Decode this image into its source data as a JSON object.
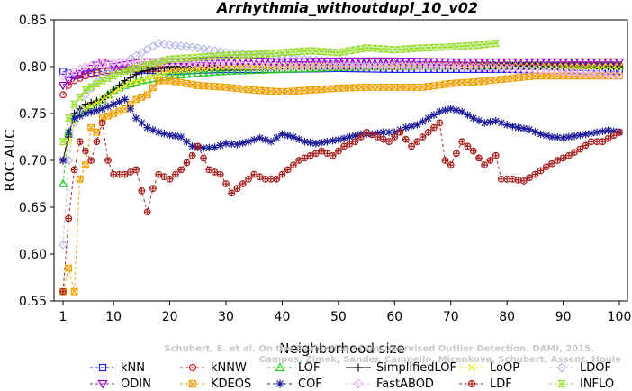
{
  "chart_data": {
    "type": "line",
    "title": "Arrhythmia_withoutdupl_10_v02",
    "xlabel": "Neighborhood size",
    "ylabel": "ROC AUC",
    "xlim": [
      0,
      101
    ],
    "ylim": [
      0.55,
      0.85
    ],
    "xticks": [
      1,
      10,
      20,
      30,
      40,
      50,
      60,
      70,
      80,
      90,
      100
    ],
    "yticks": [
      0.55,
      0.6,
      0.65,
      0.7,
      0.75,
      0.8,
      0.85
    ],
    "ytick_labels": [
      "0.55",
      "0.60",
      "0.65",
      "0.70",
      "0.75",
      "0.80",
      "0.85"
    ],
    "legend_position": "bottom",
    "series": [
      {
        "name": "kNN",
        "color": "#1a1aff",
        "marker": "square",
        "dash": "3,3",
        "points": [
          [
            1,
            0.795
          ],
          [
            2,
            0.793
          ],
          [
            3,
            0.79
          ],
          [
            5,
            0.792
          ],
          [
            8,
            0.795
          ],
          [
            12,
            0.797
          ],
          [
            20,
            0.795
          ],
          [
            30,
            0.797
          ],
          [
            40,
            0.797
          ],
          [
            50,
            0.798
          ],
          [
            60,
            0.797
          ],
          [
            70,
            0.797
          ],
          [
            80,
            0.797
          ],
          [
            90,
            0.796
          ],
          [
            100,
            0.795
          ]
        ]
      },
      {
        "name": "kNNW",
        "color": "#cc2222",
        "marker": "circle",
        "dash": "3,3",
        "points": [
          [
            1,
            0.77
          ],
          [
            2,
            0.78
          ],
          [
            3,
            0.785
          ],
          [
            5,
            0.79
          ],
          [
            8,
            0.795
          ],
          [
            12,
            0.797
          ],
          [
            20,
            0.798
          ],
          [
            30,
            0.799
          ],
          [
            40,
            0.8
          ],
          [
            50,
            0.8
          ],
          [
            60,
            0.8
          ],
          [
            70,
            0.801
          ],
          [
            80,
            0.801
          ],
          [
            90,
            0.802
          ],
          [
            100,
            0.802
          ]
        ]
      },
      {
        "name": "LOF",
        "color": "#22cc22",
        "marker": "triangle-up",
        "dash": "3,3",
        "points": [
          [
            1,
            0.675
          ],
          [
            2,
            0.73
          ],
          [
            3,
            0.745
          ],
          [
            5,
            0.755
          ],
          [
            8,
            0.765
          ],
          [
            10,
            0.775
          ],
          [
            12,
            0.78
          ],
          [
            15,
            0.785
          ],
          [
            20,
            0.79
          ],
          [
            25,
            0.793
          ],
          [
            30,
            0.795
          ],
          [
            40,
            0.797
          ],
          [
            50,
            0.799
          ],
          [
            60,
            0.8
          ],
          [
            70,
            0.8
          ],
          [
            80,
            0.801
          ],
          [
            90,
            0.801
          ],
          [
            100,
            0.801
          ]
        ]
      },
      {
        "name": "SimplifiedLOF",
        "color": "#000000",
        "marker": "plus",
        "dash": "",
        "points": [
          [
            1,
            0.7
          ],
          [
            2,
            0.725
          ],
          [
            3,
            0.75
          ],
          [
            5,
            0.76
          ],
          [
            8,
            0.765
          ],
          [
            10,
            0.775
          ],
          [
            12,
            0.785
          ],
          [
            15,
            0.795
          ],
          [
            20,
            0.8
          ],
          [
            30,
            0.8
          ],
          [
            40,
            0.799
          ],
          [
            50,
            0.8
          ],
          [
            60,
            0.801
          ],
          [
            70,
            0.801
          ],
          [
            80,
            0.801
          ],
          [
            90,
            0.8
          ],
          [
            100,
            0.8
          ]
        ]
      },
      {
        "name": "LoOP",
        "color": "#e8e800",
        "marker": "x",
        "dash": "3,3",
        "points": [
          [
            1,
            0.7
          ],
          [
            2,
            0.72
          ],
          [
            3,
            0.74
          ],
          [
            5,
            0.755
          ],
          [
            8,
            0.765
          ],
          [
            12,
            0.78
          ],
          [
            20,
            0.795
          ],
          [
            30,
            0.8
          ],
          [
            40,
            0.8
          ],
          [
            50,
            0.801
          ],
          [
            60,
            0.801
          ],
          [
            70,
            0.802
          ],
          [
            80,
            0.801
          ],
          [
            90,
            0.8
          ],
          [
            100,
            0.8
          ]
        ]
      },
      {
        "name": "LDOF",
        "color": "#b8b8e8",
        "marker": "diamond",
        "dash": "3,3",
        "points": [
          [
            1,
            0.61
          ],
          [
            2,
            0.7
          ],
          [
            3,
            0.74
          ],
          [
            5,
            0.77
          ],
          [
            8,
            0.79
          ],
          [
            12,
            0.805
          ],
          [
            15,
            0.815
          ],
          [
            18,
            0.825
          ],
          [
            22,
            0.822
          ],
          [
            25,
            0.82
          ],
          [
            30,
            0.815
          ],
          [
            40,
            0.81
          ],
          [
            50,
            0.805
          ],
          [
            60,
            0.803
          ],
          [
            70,
            0.8
          ],
          [
            80,
            0.798
          ],
          [
            90,
            0.795
          ],
          [
            100,
            0.79
          ]
        ]
      },
      {
        "name": "ODIN",
        "color": "#9900cc",
        "marker": "triangle-down",
        "dash": "3,3",
        "points": [
          [
            1,
            0.78
          ],
          [
            3,
            0.79
          ],
          [
            5,
            0.795
          ],
          [
            8,
            0.805
          ],
          [
            10,
            0.8
          ],
          [
            15,
            0.805
          ],
          [
            20,
            0.805
          ],
          [
            30,
            0.807
          ],
          [
            40,
            0.805
          ],
          [
            50,
            0.806
          ],
          [
            60,
            0.806
          ],
          [
            70,
            0.805
          ],
          [
            80,
            0.805
          ],
          [
            90,
            0.805
          ],
          [
            100,
            0.805
          ]
        ]
      },
      {
        "name": "KDEOS",
        "color": "#f0a000",
        "marker": "square-x",
        "dash": "3,3",
        "points": [
          [
            1,
            0.56
          ],
          [
            2,
            0.585
          ],
          [
            3,
            0.56
          ],
          [
            4,
            0.68
          ],
          [
            5,
            0.695
          ],
          [
            6,
            0.735
          ],
          [
            7,
            0.73
          ],
          [
            8,
            0.745
          ],
          [
            10,
            0.75
          ],
          [
            12,
            0.755
          ],
          [
            14,
            0.765
          ],
          [
            16,
            0.77
          ],
          [
            18,
            0.785
          ],
          [
            20,
            0.785
          ],
          [
            25,
            0.78
          ],
          [
            30,
            0.778
          ],
          [
            35,
            0.775
          ],
          [
            40,
            0.773
          ],
          [
            45,
            0.775
          ],
          [
            50,
            0.777
          ],
          [
            55,
            0.778
          ],
          [
            60,
            0.778
          ],
          [
            65,
            0.778
          ],
          [
            70,
            0.782
          ],
          [
            75,
            0.784
          ],
          [
            80,
            0.787
          ],
          [
            85,
            0.79
          ],
          [
            90,
            0.79
          ],
          [
            95,
            0.79
          ],
          [
            100,
            0.79
          ]
        ]
      },
      {
        "name": "COF",
        "color": "#1a1a99",
        "marker": "asterisk",
        "dash": "3,3",
        "points": [
          [
            1,
            0.7
          ],
          [
            2,
            0.73
          ],
          [
            3,
            0.745
          ],
          [
            5,
            0.75
          ],
          [
            8,
            0.755
          ],
          [
            10,
            0.76
          ],
          [
            12,
            0.765
          ],
          [
            14,
            0.745
          ],
          [
            16,
            0.735
          ],
          [
            18,
            0.73
          ],
          [
            20,
            0.727
          ],
          [
            22,
            0.725
          ],
          [
            24,
            0.715
          ],
          [
            26,
            0.713
          ],
          [
            28,
            0.714
          ],
          [
            30,
            0.718
          ],
          [
            32,
            0.717
          ],
          [
            34,
            0.72
          ],
          [
            36,
            0.724
          ],
          [
            38,
            0.72
          ],
          [
            40,
            0.728
          ],
          [
            42,
            0.725
          ],
          [
            44,
            0.72
          ],
          [
            46,
            0.718
          ],
          [
            48,
            0.72
          ],
          [
            50,
            0.722
          ],
          [
            52,
            0.725
          ],
          [
            54,
            0.728
          ],
          [
            56,
            0.728
          ],
          [
            58,
            0.73
          ],
          [
            60,
            0.73
          ],
          [
            62,
            0.735
          ],
          [
            64,
            0.738
          ],
          [
            66,
            0.745
          ],
          [
            68,
            0.752
          ],
          [
            70,
            0.755
          ],
          [
            72,
            0.752
          ],
          [
            74,
            0.745
          ],
          [
            76,
            0.74
          ],
          [
            78,
            0.742
          ],
          [
            80,
            0.738
          ],
          [
            82,
            0.735
          ],
          [
            84,
            0.733
          ],
          [
            86,
            0.728
          ],
          [
            88,
            0.725
          ],
          [
            90,
            0.724
          ],
          [
            92,
            0.726
          ],
          [
            94,
            0.728
          ],
          [
            96,
            0.73
          ],
          [
            98,
            0.732
          ],
          [
            100,
            0.73
          ]
        ]
      },
      {
        "name": "FastABOD",
        "color": "#f0b0f0",
        "marker": "diamond",
        "dash": "3,3",
        "points": [
          [
            1,
            0.79
          ],
          [
            3,
            0.795
          ],
          [
            5,
            0.8
          ],
          [
            8,
            0.803
          ],
          [
            12,
            0.805
          ],
          [
            20,
            0.805
          ],
          [
            30,
            0.802
          ],
          [
            40,
            0.8
          ],
          [
            50,
            0.8
          ],
          [
            60,
            0.8
          ],
          [
            70,
            0.8
          ],
          [
            80,
            0.798
          ],
          [
            90,
            0.795
          ],
          [
            100,
            0.79
          ]
        ]
      },
      {
        "name": "LDF",
        "color": "#aa2222",
        "marker": "circle-plus",
        "dash": "3,3",
        "points": [
          [
            1,
            0.56
          ],
          [
            2,
            0.638
          ],
          [
            3,
            0.69
          ],
          [
            4,
            0.72
          ],
          [
            5,
            0.71
          ],
          [
            6,
            0.7
          ],
          [
            8,
            0.74
          ],
          [
            9,
            0.7
          ],
          [
            10,
            0.685
          ],
          [
            12,
            0.685
          ],
          [
            14,
            0.69
          ],
          [
            16,
            0.645
          ],
          [
            17,
            0.67
          ],
          [
            18,
            0.685
          ],
          [
            20,
            0.68
          ],
          [
            22,
            0.69
          ],
          [
            24,
            0.705
          ],
          [
            25,
            0.715
          ],
          [
            27,
            0.69
          ],
          [
            29,
            0.685
          ],
          [
            31,
            0.665
          ],
          [
            33,
            0.675
          ],
          [
            35,
            0.685
          ],
          [
            37,
            0.68
          ],
          [
            39,
            0.68
          ],
          [
            41,
            0.69
          ],
          [
            43,
            0.7
          ],
          [
            45,
            0.705
          ],
          [
            47,
            0.71
          ],
          [
            49,
            0.705
          ],
          [
            51,
            0.715
          ],
          [
            53,
            0.72
          ],
          [
            55,
            0.73
          ],
          [
            57,
            0.725
          ],
          [
            59,
            0.72
          ],
          [
            61,
            0.73
          ],
          [
            63,
            0.715
          ],
          [
            65,
            0.725
          ],
          [
            67,
            0.735
          ],
          [
            68,
            0.74
          ],
          [
            69,
            0.7
          ],
          [
            70,
            0.695
          ],
          [
            72,
            0.72
          ],
          [
            74,
            0.71
          ],
          [
            76,
            0.695
          ],
          [
            78,
            0.705
          ],
          [
            79,
            0.68
          ],
          [
            81,
            0.68
          ],
          [
            83,
            0.678
          ],
          [
            85,
            0.685
          ],
          [
            87,
            0.693
          ],
          [
            89,
            0.7
          ],
          [
            91,
            0.705
          ],
          [
            93,
            0.712
          ],
          [
            95,
            0.72
          ],
          [
            97,
            0.72
          ],
          [
            100,
            0.73
          ]
        ]
      },
      {
        "name": "INFLO",
        "color": "#99dd33",
        "marker": "hourglass",
        "dash": "3,3",
        "points": [
          [
            1,
            0.72
          ],
          [
            2,
            0.745
          ],
          [
            3,
            0.76
          ],
          [
            5,
            0.775
          ],
          [
            8,
            0.785
          ],
          [
            10,
            0.79
          ],
          [
            12,
            0.795
          ],
          [
            15,
            0.8
          ],
          [
            18,
            0.805
          ],
          [
            20,
            0.808
          ],
          [
            25,
            0.81
          ],
          [
            30,
            0.812
          ],
          [
            35,
            0.813
          ],
          [
            40,
            0.815
          ],
          [
            45,
            0.817
          ],
          [
            50,
            0.815
          ],
          [
            55,
            0.82
          ],
          [
            60,
            0.818
          ],
          [
            65,
            0.82
          ],
          [
            70,
            0.821
          ],
          [
            75,
            0.823
          ],
          [
            78,
            0.825
          ]
        ]
      }
    ]
  },
  "watermark": "Schubert, E. et al. On the Evaluation of Unsupervised Outlier Detection. DAMI, 2015. Campos, Zimek, Sander, Campello, Micenkova, Schubert, Assent, Houle"
}
